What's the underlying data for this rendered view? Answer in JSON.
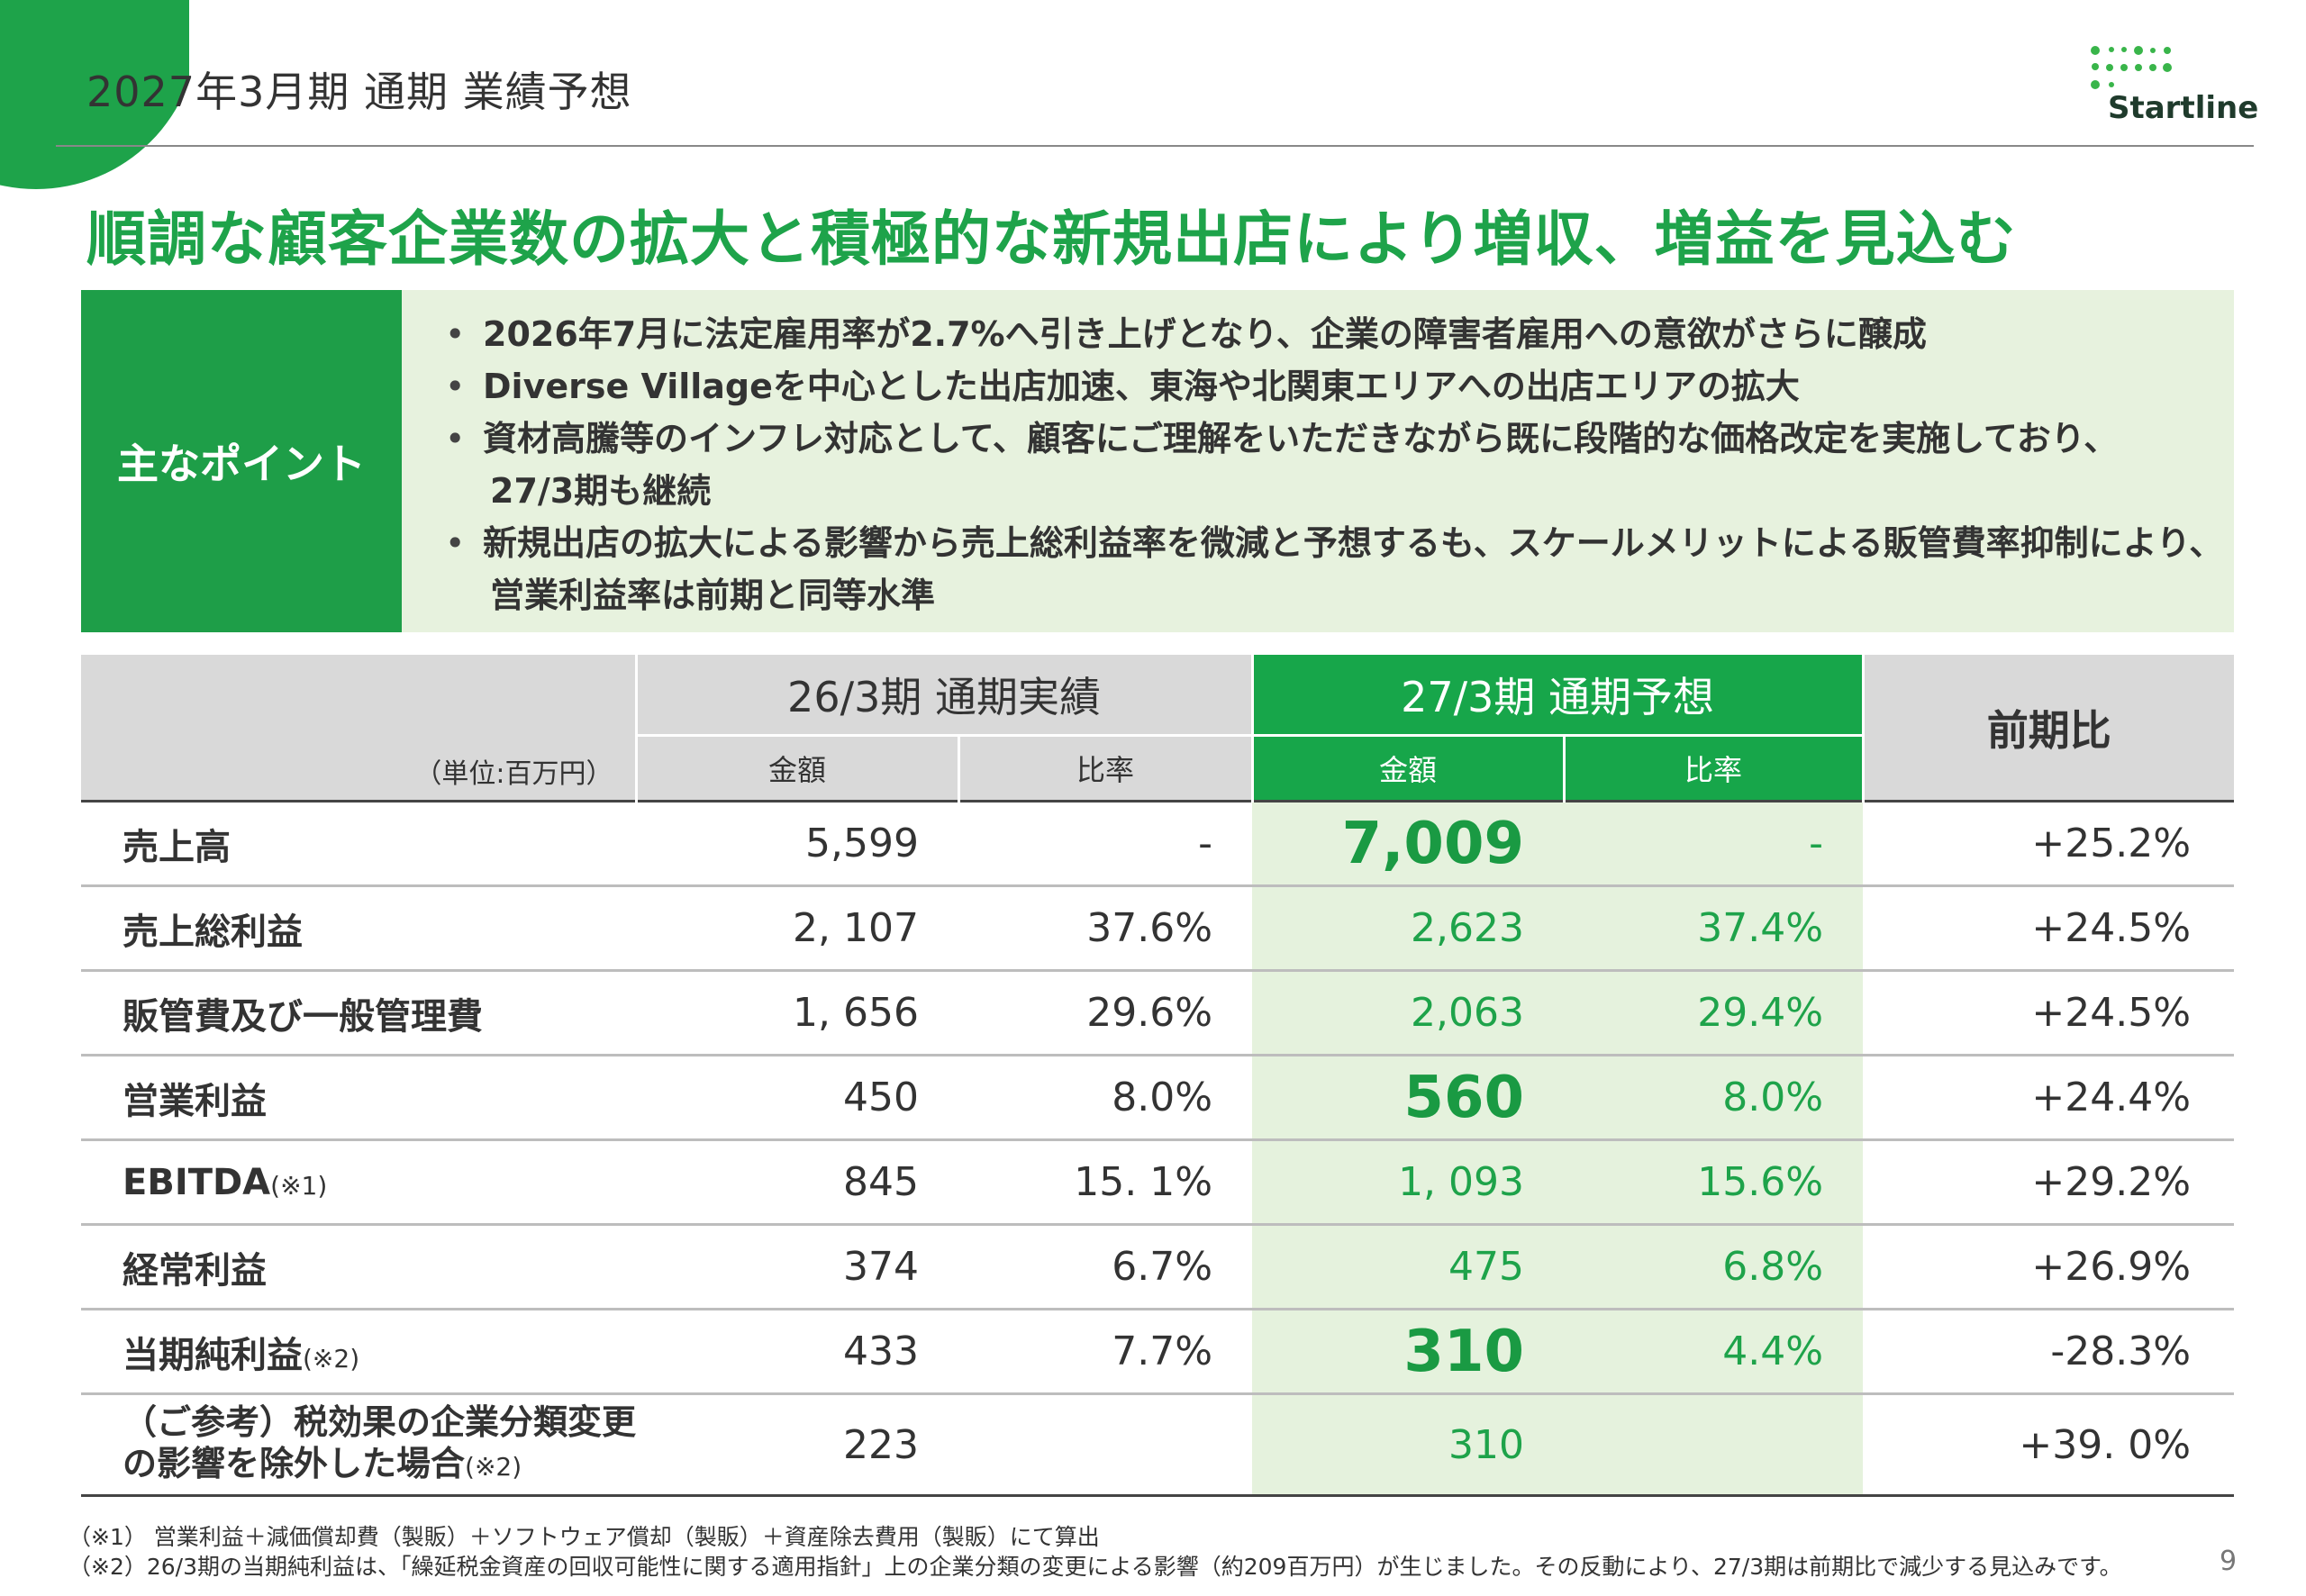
{
  "header": {
    "title": "2027年3月期 通期 業績予想",
    "logo_text": "Startline"
  },
  "headline": "順調な顧客企業数の拡大と積極的な新規出店により増収、増益を見込む",
  "points": {
    "label": "主なポイント",
    "items": [
      {
        "line1": "2026年7月に法定雇用率が2.7%へ引き上げとなり、企業の障害者雇用への意欲がさらに醸成",
        "line2": ""
      },
      {
        "line1": "Diverse Villageを中心とした出店加速、東海や北関東エリアへの出店エリアの拡大",
        "line2": ""
      },
      {
        "line1": "資材高騰等のインフレ対応として、顧客にご理解をいただきながら既に段階的な価格改定を実施しており、",
        "line2": " 27/3期も継続"
      },
      {
        "line1": "新規出店の拡大による影響から売上総利益率を微減と予想するも、スケールメリットによる販管費率抑制により、",
        "line2": "営業利益率は前期と同等水準"
      }
    ]
  },
  "table": {
    "unit": "（単位:百万円）",
    "actual_header": "26/3期 通期実績",
    "forecast_header": "27/3期 通期予想",
    "yoy_header": "前期比",
    "amount_label": "金額",
    "ratio_label": "比率",
    "rows": [
      {
        "label": "売上高",
        "note": "",
        "a_amt": "5,599",
        "a_ratio": "-",
        "f_amt": "7,009",
        "f_ratio": "-",
        "yoy": "+25.2%"
      },
      {
        "label": "売上総利益",
        "note": "",
        "a_amt": "2, 107",
        "a_ratio": "37.6%",
        "f_amt": "2,623",
        "f_ratio": "37.4%",
        "yoy": "+24.5%"
      },
      {
        "label": "販管費及び一般管理費",
        "note": "",
        "a_amt": "1, 656",
        "a_ratio": "29.6%",
        "f_amt": "2,063",
        "f_ratio": "29.4%",
        "yoy": "+24.5%"
      },
      {
        "label": "営業利益",
        "note": "",
        "a_amt": "450",
        "a_ratio": "8.0%",
        "f_amt": "560",
        "f_ratio": "8.0%",
        "yoy": "+24.4%"
      },
      {
        "label": "EBITDA",
        "note": "(※1)",
        "a_amt": "845",
        "a_ratio": "15. 1%",
        "f_amt": "1, 093",
        "f_ratio": "15.6%",
        "yoy": "+29.2%"
      },
      {
        "label": "経常利益",
        "note": "",
        "a_amt": "374",
        "a_ratio": "6.7%",
        "f_amt": "475",
        "f_ratio": "6.8%",
        "yoy": "+26.9%"
      },
      {
        "label": "当期純利益",
        "note": "(※2)",
        "a_amt": "433",
        "a_ratio": "7.7%",
        "f_amt": "310",
        "f_ratio": "4.4%",
        "yoy": "-28.3%"
      },
      {
        "label": "（ご参考）税効果の企業分類変更",
        "label2": "の影響を除外した場合",
        "note": "(※2)",
        "a_amt": "223",
        "a_ratio": "",
        "f_amt": "310",
        "f_ratio": "",
        "yoy": "+39. 0%"
      }
    ]
  },
  "footnotes": [
    "（※1） 営業利益＋減価償却費（製販）＋ソフトウェア償却（製販）＋資産除去費用（製販）にて算出",
    "（※2）26/3期の当期純利益は、「繰延税金資産の回収可能性に関する適用指針」上の企業分類の変更による影響（約209百万円）が生じました。その反動により、27/3期は前期比で減少する見込みです。"
  ],
  "page_number": "9",
  "colors": {
    "brand_green": "#1ea34a",
    "light_green": "#e7f2de",
    "header_grey": "#d9d9d9"
  }
}
